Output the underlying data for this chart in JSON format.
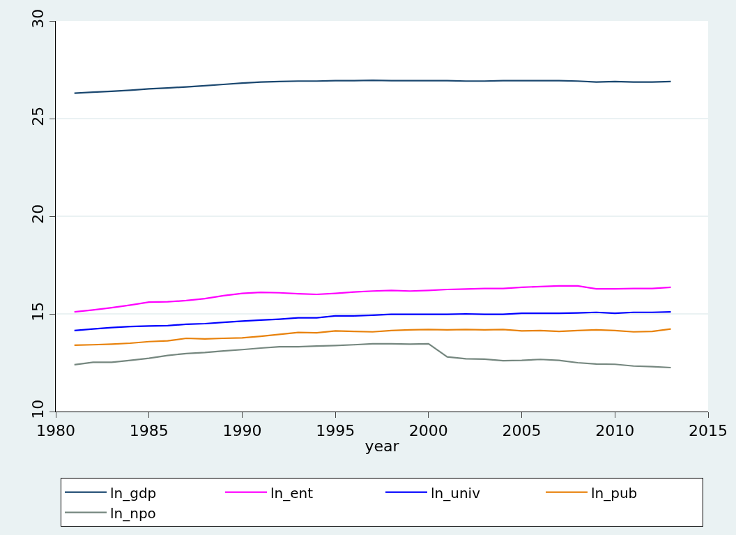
{
  "chart_data": {
    "type": "line",
    "xlabel": "year",
    "x": [
      1981,
      1982,
      1983,
      1984,
      1985,
      1986,
      1987,
      1988,
      1989,
      1990,
      1991,
      1992,
      1993,
      1994,
      1995,
      1996,
      1997,
      1998,
      1999,
      2000,
      2001,
      2002,
      2003,
      2004,
      2005,
      2006,
      2007,
      2008,
      2009,
      2010,
      2011,
      2012,
      2013
    ],
    "series": [
      {
        "name": "ln_gdp",
        "color": "#1a476f",
        "values": [
          26.3,
          26.35,
          26.4,
          26.45,
          26.52,
          26.57,
          26.62,
          26.68,
          26.75,
          26.82,
          26.87,
          26.9,
          26.92,
          26.92,
          26.94,
          26.94,
          26.96,
          26.94,
          26.94,
          26.94,
          26.94,
          26.92,
          26.92,
          26.94,
          26.94,
          26.94,
          26.94,
          26.92,
          26.87,
          26.9,
          26.87,
          26.87,
          26.9
        ]
      },
      {
        "name": "ln_ent",
        "color": "#ff00ff",
        "values": [
          15.1,
          15.2,
          15.32,
          15.45,
          15.6,
          15.62,
          15.68,
          15.78,
          15.93,
          16.05,
          16.1,
          16.08,
          16.03,
          16.0,
          16.05,
          16.12,
          16.17,
          16.2,
          16.17,
          16.2,
          16.25,
          16.27,
          16.3,
          16.3,
          16.36,
          16.4,
          16.43,
          16.43,
          16.28,
          16.28,
          16.3,
          16.3,
          16.36
        ]
      },
      {
        "name": "ln_univ",
        "color": "#0000ff",
        "values": [
          14.15,
          14.23,
          14.3,
          14.35,
          14.38,
          14.4,
          14.47,
          14.5,
          14.57,
          14.63,
          14.68,
          14.73,
          14.8,
          14.8,
          14.9,
          14.9,
          14.93,
          14.98,
          14.98,
          14.98,
          14.98,
          15.0,
          14.98,
          14.98,
          15.03,
          15.03,
          15.03,
          15.05,
          15.08,
          15.03,
          15.08,
          15.08,
          15.1
        ]
      },
      {
        "name": "ln_pub",
        "color": "#e8820c",
        "values": [
          13.4,
          13.42,
          13.45,
          13.5,
          13.58,
          13.62,
          13.75,
          13.72,
          13.75,
          13.77,
          13.85,
          13.95,
          14.05,
          14.03,
          14.13,
          14.1,
          14.08,
          14.15,
          14.18,
          14.2,
          14.18,
          14.2,
          14.18,
          14.2,
          14.13,
          14.15,
          14.1,
          14.15,
          14.18,
          14.15,
          14.08,
          14.1,
          14.23
        ]
      },
      {
        "name": "ln_npo",
        "color": "#75877f",
        "values": [
          12.4,
          12.52,
          12.52,
          12.62,
          12.73,
          12.87,
          12.97,
          13.02,
          13.1,
          13.17,
          13.25,
          13.32,
          13.32,
          13.35,
          13.38,
          13.42,
          13.47,
          13.47,
          13.45,
          13.47,
          12.8,
          12.7,
          12.68,
          12.6,
          12.62,
          12.67,
          12.62,
          12.5,
          12.43,
          12.42,
          12.33,
          12.3,
          12.25
        ]
      }
    ],
    "xlim": [
      1980,
      2015
    ],
    "xticks": [
      1980,
      1985,
      1990,
      1995,
      2000,
      2005,
      2010,
      2015
    ],
    "ylim": [
      10,
      30
    ],
    "yticks": [
      10,
      15,
      20,
      25,
      30
    ],
    "grid": "y",
    "legend": "bottom",
    "marker": "none",
    "line_style": "solid"
  }
}
